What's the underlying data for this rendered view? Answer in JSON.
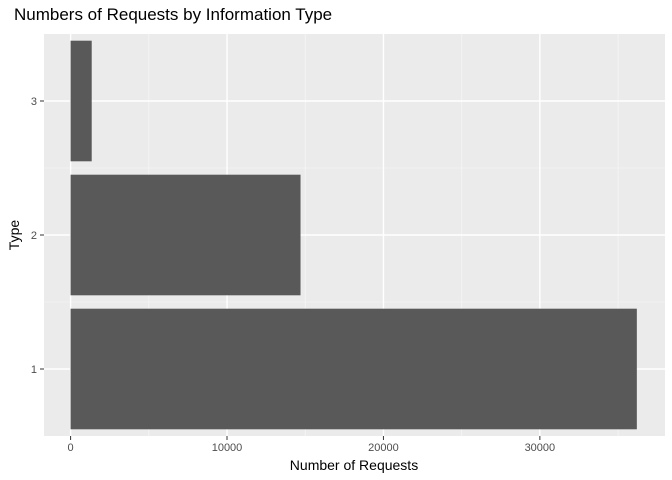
{
  "chart_data": {
    "type": "bar",
    "orientation": "horizontal",
    "title": "Numbers of Requests by Information Type",
    "xlabel": "Number of Requests",
    "ylabel": "Type",
    "categories": [
      "1",
      "2",
      "3"
    ],
    "values": [
      36200,
      14700,
      1350
    ],
    "xlim": [
      -1700,
      38000
    ],
    "x_ticks": [
      0,
      10000,
      20000,
      30000
    ],
    "x_tick_labels": [
      "0",
      "10000",
      "20000",
      "30000"
    ],
    "grid": true,
    "legend": "none",
    "colors": {
      "bar": "#595959",
      "panel": "#ebebeb",
      "grid_major": "#ffffff",
      "grid_minor": "#f5f5f5",
      "tick": "#333333"
    }
  }
}
